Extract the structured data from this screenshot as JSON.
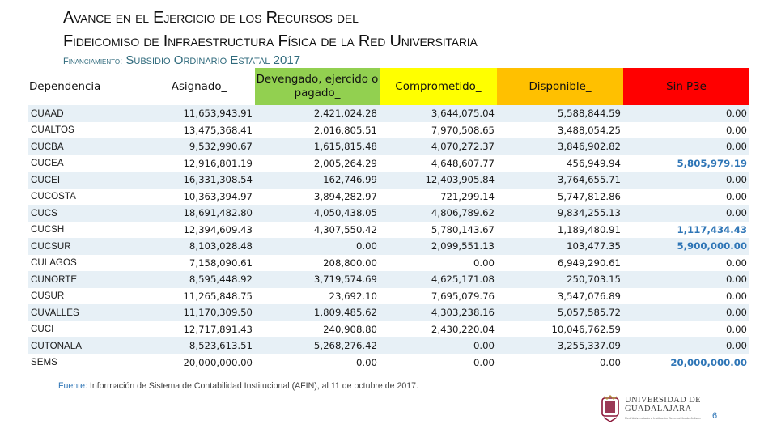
{
  "title": {
    "line1": "Avance en el Ejercicio de los Recursos del",
    "line2": "Fideicomiso de Infraestructura Física de la Red Universitaria"
  },
  "subtitle": {
    "lead": "Financiamiento:",
    "value": "Subsidio Ordinario Estatal 2017"
  },
  "table": {
    "headers": [
      "Dependencia",
      "Asignado_",
      "Devengado, ejercido o pagado_",
      "Comprometido_",
      "Disponible_",
      "Sin P3e"
    ],
    "header_colors": {
      "devengado": "#92d050",
      "comprometido": "#ffff00",
      "disponible": "#ffc000",
      "sin_p3e": "#ff0000"
    },
    "rows": [
      [
        "CUAAD",
        "11,653,943.91",
        "2,421,024.28",
        "3,644,075.04",
        "5,588,844.59",
        "0.00"
      ],
      [
        "CUALTOS",
        "13,475,368.41",
        "2,016,805.51",
        "7,970,508.65",
        "3,488,054.25",
        "0.00"
      ],
      [
        "CUCBA",
        "9,532,990.67",
        "1,615,815.48",
        "4,070,272.37",
        "3,846,902.82",
        "0.00"
      ],
      [
        "CUCEA",
        "12,916,801.19",
        "2,005,264.29",
        "4,648,607.77",
        "456,949.94",
        "5,805,979.19"
      ],
      [
        "CUCEI",
        "16,331,308.54",
        "162,746.99",
        "12,403,905.84",
        "3,764,655.71",
        "0.00"
      ],
      [
        "CUCOSTA",
        "10,363,394.97",
        "3,894,282.97",
        "721,299.14",
        "5,747,812.86",
        "0.00"
      ],
      [
        "CUCS",
        "18,691,482.80",
        "4,050,438.05",
        "4,806,789.62",
        "9,834,255.13",
        "0.00"
      ],
      [
        "CUCSH",
        "12,394,609.43",
        "4,307,550.42",
        "5,780,143.67",
        "1,189,480.91",
        "1,117,434.43"
      ],
      [
        "CUCSUR",
        "8,103,028.48",
        "0.00",
        "2,099,551.13",
        "103,477.35",
        "5,900,000.00"
      ],
      [
        "CULAGOS",
        "7,158,090.61",
        "208,800.00",
        "0.00",
        "6,949,290.61",
        "0.00"
      ],
      [
        "CUNORTE",
        "8,595,448.92",
        "3,719,574.69",
        "4,625,171.08",
        "250,703.15",
        "0.00"
      ],
      [
        "CUSUR",
        "11,265,848.75",
        "23,692.10",
        "7,695,079.76",
        "3,547,076.89",
        "0.00"
      ],
      [
        "CUVALLES",
        "11,170,309.50",
        "1,809,485.62",
        "4,303,238.16",
        "5,057,585.72",
        "0.00"
      ],
      [
        "CUCI",
        "12,717,891.43",
        "240,908.80",
        "2,430,220.04",
        "10,046,762.59",
        "0.00"
      ],
      [
        "CUTONALA",
        "8,523,613.51",
        "5,268,276.42",
        "0.00",
        "3,255,337.09",
        "0.00"
      ],
      [
        "SEMS",
        "20,000,000.00",
        "0.00",
        "0.00",
        "0.00",
        "20,000,000.00"
      ]
    ],
    "highlight_color": "#2e75b6"
  },
  "source": {
    "label": "Fuente:",
    "text": " Información de Sistema de Contabilidad Institucional (AFIN), al 11 de octubre de 2017."
  },
  "logo": {
    "line1": "UNIVERSIDAD DE",
    "line2": "GUADALAJARA",
    "tagline": "Red Universitaria e Institución Benemérita de Jalisco",
    "icon": "university-emblem-icon"
  },
  "page_number": "6"
}
